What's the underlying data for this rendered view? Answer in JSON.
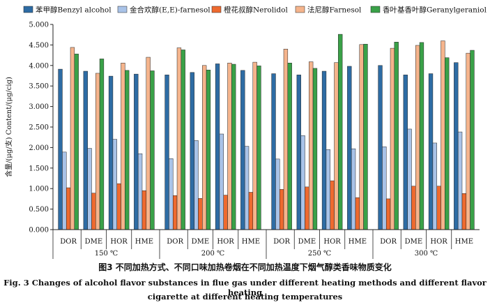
{
  "chart_data": {
    "type": "bar",
    "ylabel": "含量/(μg/支) Content/(μg/cig)",
    "ylim": [
      0,
      5
    ],
    "yticks": [
      "0.000",
      "0.500",
      "1.000",
      "1.500",
      "2.000",
      "2.500",
      "3.000",
      "3.500",
      "4.000",
      "4.500",
      "5.000"
    ],
    "grid": false,
    "legend_position": "top",
    "groups": [
      "150 ℃",
      "200 ℃",
      "250 ℃",
      "300 ℃"
    ],
    "categories": [
      "DOR",
      "DME",
      "HOR",
      "HME"
    ],
    "series": [
      {
        "name": "苯甲醇Benzyl alcohol",
        "color": "#2e6ca4",
        "values": [
          [
            3.91,
            3.86,
            3.74,
            3.79
          ],
          [
            3.77,
            3.83,
            4.04,
            3.88
          ],
          [
            3.8,
            3.77,
            3.86,
            3.98
          ],
          [
            4.0,
            3.77,
            3.8,
            4.07
          ]
        ]
      },
      {
        "name": "金合欢醇(E,E)-farnesol",
        "color": "#a9c3e8",
        "values": [
          [
            1.89,
            1.98,
            2.2,
            1.85
          ],
          [
            1.73,
            2.17,
            2.33,
            2.03
          ],
          [
            1.72,
            2.29,
            1.95,
            1.97
          ],
          [
            2.02,
            2.45,
            2.11,
            2.38
          ]
        ]
      },
      {
        "name": "橙花叔醇Nerolidol",
        "color": "#ee6a2f",
        "values": [
          [
            1.02,
            0.89,
            1.12,
            0.95
          ],
          [
            0.83,
            0.76,
            0.84,
            0.91
          ],
          [
            0.98,
            1.04,
            1.19,
            0.78
          ],
          [
            0.75,
            1.06,
            1.06,
            0.88
          ]
        ]
      },
      {
        "name": "法尼醇Farnesol",
        "color": "#f5b48c",
        "values": [
          [
            4.44,
            3.81,
            4.06,
            4.2
          ],
          [
            4.43,
            4.0,
            4.06,
            4.08
          ],
          [
            4.4,
            4.09,
            4.07,
            4.51
          ],
          [
            4.42,
            4.49,
            4.6,
            4.3
          ]
        ]
      },
      {
        "name": "香叶基香叶醇Geranylgeraniol",
        "color": "#3aa148",
        "values": [
          [
            4.28,
            4.16,
            3.88,
            3.87
          ],
          [
            4.38,
            3.89,
            4.03,
            3.99
          ],
          [
            4.06,
            3.93,
            4.76,
            4.52
          ],
          [
            4.57,
            4.56,
            4.19,
            4.37
          ]
        ]
      }
    ]
  },
  "caption": {
    "cn": "图3  不同加热方式、不同口味加热卷烟在不同加热温度下烟气醇类香味物质变化",
    "en_line1": "Fig. 3  Changes of alcohol flavor substances in flue gas under different heating methods and different flavor heating",
    "en_line2": "cigarette at different heating temperatures"
  }
}
